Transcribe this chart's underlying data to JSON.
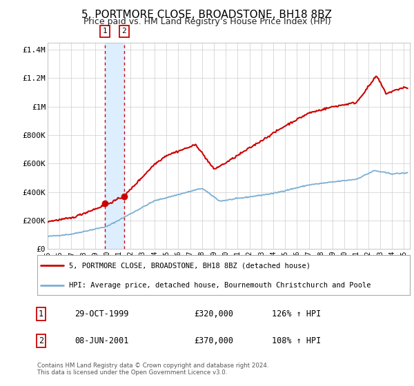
{
  "title": "5, PORTMORE CLOSE, BROADSTONE, BH18 8BZ",
  "subtitle": "Price paid vs. HM Land Registry’s House Price Index (HPI)",
  "legend_line1": "5, PORTMORE CLOSE, BROADSTONE, BH18 8BZ (detached house)",
  "legend_line2": "HPI: Average price, detached house, Bournemouth Christchurch and Poole",
  "footnote1": "Contains HM Land Registry data © Crown copyright and database right 2024.",
  "footnote2": "This data is licensed under the Open Government Licence v3.0.",
  "transaction1_date": "29-OCT-1999",
  "transaction1_price": "£320,000",
  "transaction1_hpi": "126% ↑ HPI",
  "transaction2_date": "08-JUN-2001",
  "transaction2_price": "£370,000",
  "transaction2_hpi": "108% ↑ HPI",
  "transaction1_x": 1999.83,
  "transaction1_y": 320000,
  "transaction2_x": 2001.44,
  "transaction2_y": 370000,
  "vline1_x": 1999.83,
  "vline2_x": 2001.44,
  "shade_x1": 1999.83,
  "shade_x2": 2001.44,
  "xmin": 1995.0,
  "xmax": 2025.5,
  "ymin": 0,
  "ymax": 1450000,
  "yticks": [
    0,
    200000,
    400000,
    600000,
    800000,
    1000000,
    1200000,
    1400000
  ],
  "ytick_labels": [
    "£0",
    "£200K",
    "£400K",
    "£600K",
    "£800K",
    "£1M",
    "£1.2M",
    "£1.4M"
  ],
  "red_line_color": "#cc0000",
  "blue_line_color": "#7aafd4",
  "shade_color": "#ddeeff",
  "vline_color": "#cc0000",
  "grid_color": "#cccccc",
  "background_color": "#ffffff",
  "title_fontsize": 11,
  "subtitle_fontsize": 9
}
